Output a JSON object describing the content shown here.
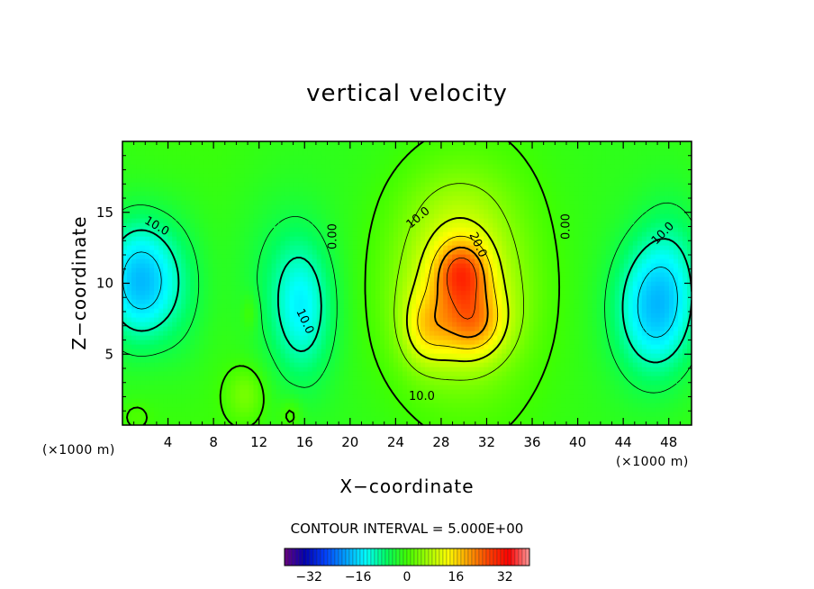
{
  "chart_data": {
    "type": "heatmap",
    "title": "vertical velocity",
    "xlabel": "X−coordinate",
    "ylabel": "Z−coordinate",
    "x_unit_left": "(×1000 m)",
    "x_unit_right": "(×1000 m)",
    "xlim": [
      0,
      50
    ],
    "ylim": [
      0,
      20
    ],
    "xticks": [
      4,
      8,
      12,
      16,
      20,
      24,
      28,
      32,
      36,
      40,
      44,
      48
    ],
    "xtick_labels": [
      "4",
      "8",
      "12",
      "16",
      "20",
      "24",
      "28",
      "32",
      "36",
      "40",
      "44",
      "48"
    ],
    "yticks": [
      5,
      10,
      15
    ],
    "ytick_labels": [
      "5",
      "10",
      "15"
    ],
    "contour_interval_text": "CONTOUR INTERVAL = 5.000E+00",
    "contour_interval": 5,
    "colorbar": {
      "range": [
        -40,
        40
      ],
      "ticks": [
        -32,
        -16,
        0,
        16,
        32
      ],
      "tick_labels": [
        "−32",
        "−16",
        "0",
        "16",
        "32"
      ],
      "colors": [
        "#6a0080",
        "#0000b0",
        "#0040ff",
        "#00a0ff",
        "#00ffff",
        "#00ff60",
        "#40ff00",
        "#a0ff00",
        "#ffff00",
        "#ffa000",
        "#ff4000",
        "#ff0000",
        "#ff9a9a"
      ]
    },
    "field_features": [
      {
        "name": "updraft core",
        "x": 29.5,
        "z": 10.5,
        "value": 30
      },
      {
        "name": "updraft lobe",
        "x": 30.5,
        "z": 7.5,
        "value": 24
      },
      {
        "name": "updraft lower-left",
        "x": 26,
        "z": 6,
        "value": 20
      },
      {
        "name": "left downdraft",
        "x": 2,
        "z": 10,
        "value": -18
      },
      {
        "name": "left-center downdraft",
        "x": 15.5,
        "z": 8,
        "value": -13
      },
      {
        "name": "right downdraft",
        "x": 46.5,
        "z": 8,
        "value": -16
      }
    ],
    "contour_labels": [
      {
        "text": "10.0",
        "x": 3.0,
        "z": 14.0,
        "angle": 30
      },
      {
        "text": "10.0",
        "x": 16.0,
        "z": 7.3,
        "angle": 65
      },
      {
        "text": "0.00",
        "x": 18.5,
        "z": 13.3,
        "angle": -90
      },
      {
        "text": "10.0",
        "x": 26.0,
        "z": 14.6,
        "angle": -40
      },
      {
        "text": "20.0",
        "x": 31.2,
        "z": 12.7,
        "angle": 65
      },
      {
        "text": "10.0",
        "x": 26.3,
        "z": 2.0,
        "angle": 0
      },
      {
        "text": "0.00",
        "x": 39.0,
        "z": 14.0,
        "angle": -90
      },
      {
        "text": "10.0",
        "x": 47.5,
        "z": 13.5,
        "angle": -45
      }
    ]
  }
}
